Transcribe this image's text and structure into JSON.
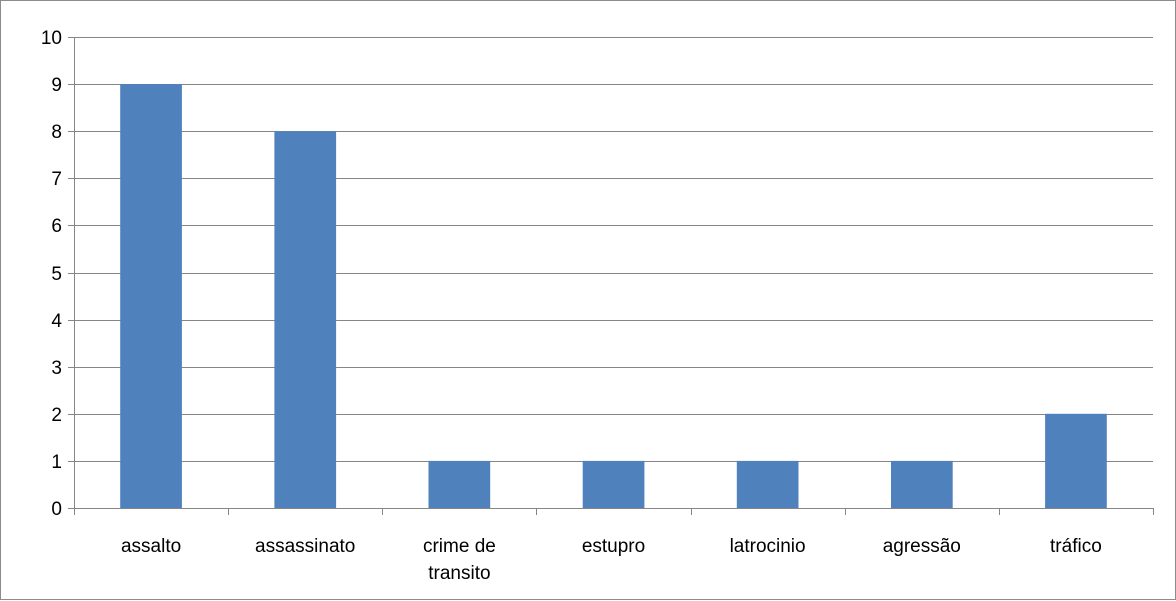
{
  "chart_data": {
    "type": "bar",
    "categories": [
      [
        "assalto"
      ],
      [
        "assassinato"
      ],
      [
        "crime de",
        "transito"
      ],
      [
        "estupro"
      ],
      [
        "latrocinio"
      ],
      [
        "agressão"
      ],
      [
        "tráfico"
      ]
    ],
    "values": [
      9,
      8,
      1,
      1,
      1,
      1,
      2
    ],
    "title": "",
    "xlabel": "",
    "ylabel": "",
    "ylim": [
      0,
      10
    ],
    "yticks": [
      "0",
      "1",
      "2",
      "3",
      "4",
      "5",
      "6",
      "7",
      "8",
      "9",
      "10"
    ],
    "grid": true,
    "legend": "none",
    "colors": {
      "bar": "#4f81bd",
      "gridline": "#868686",
      "axis": "#868686",
      "text": "#000000"
    }
  }
}
